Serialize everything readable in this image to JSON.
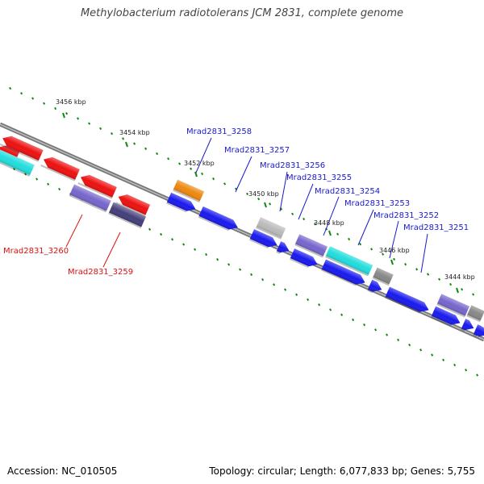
{
  "title": "Methylobacterium radiotolerans JCM 2831, complete genome",
  "footer": {
    "accession": "Accession: NC_010505",
    "summary": "Topology: circular; Length: 6,077,833 bp; Genes: 5,755"
  },
  "colors": {
    "forward_gene": "#1a1aee",
    "reverse_gene": "#ee1111",
    "cyan_gene": "#22dddd",
    "orange_gene": "#ee8811",
    "purple_gene": "#7766cc",
    "dark_purple_gene": "#443f7a",
    "grey_gene": "#888888",
    "light_grey_gene": "#bbbbbb",
    "backbone": "#777777",
    "tick": "#118811"
  },
  "kbp_labels": [
    "3456 kbp",
    "3454 kbp",
    "3452 kbp",
    "3450 kbp",
    "3448 kbp",
    "3446 kbp",
    "3444 kbp"
  ],
  "gene_labels": [
    {
      "text": "Mrad2831_3258",
      "strand": "forward"
    },
    {
      "text": "Mrad2831_3257",
      "strand": "forward"
    },
    {
      "text": "Mrad2831_3256",
      "strand": "forward"
    },
    {
      "text": "Mrad2831_3255",
      "strand": "forward"
    },
    {
      "text": "Mrad2831_3254",
      "strand": "forward"
    },
    {
      "text": "Mrad2831_3253",
      "strand": "forward"
    },
    {
      "text": "Mrad2831_3252",
      "strand": "forward"
    },
    {
      "text": "Mrad2831_3251",
      "strand": "forward"
    },
    {
      "text": "Mrad2831_3260",
      "strand": "reverse"
    },
    {
      "text": "Mrad2831_3259",
      "strand": "reverse"
    }
  ],
  "genes": [
    {
      "color": "reverse_gene",
      "dir": "left"
    },
    {
      "color": "reverse_gene",
      "dir": "left"
    },
    {
      "color": "reverse_gene",
      "dir": "left"
    },
    {
      "color": "reverse_gene",
      "dir": "left"
    },
    {
      "color": "reverse_gene",
      "dir": "left"
    },
    {
      "color": "cyan_gene",
      "dir": "none"
    },
    {
      "color": "purple_gene",
      "dir": "none"
    },
    {
      "color": "dark_purple_gene",
      "dir": "none"
    },
    {
      "color": "orange_gene",
      "dir": "none"
    },
    {
      "color": "forward_gene",
      "dir": "right"
    },
    {
      "color": "forward_gene",
      "dir": "right"
    },
    {
      "color": "light_grey_gene",
      "dir": "none"
    },
    {
      "color": "forward_gene",
      "dir": "right"
    },
    {
      "color": "forward_gene",
      "dir": "right"
    },
    {
      "color": "purple_gene",
      "dir": "none"
    },
    {
      "color": "forward_gene",
      "dir": "right"
    },
    {
      "color": "forward_gene",
      "dir": "right"
    },
    {
      "color": "cyan_gene",
      "dir": "none"
    },
    {
      "color": "forward_gene",
      "dir": "right"
    },
    {
      "color": "grey_gene",
      "dir": "none"
    },
    {
      "color": "forward_gene",
      "dir": "right"
    },
    {
      "color": "forward_gene",
      "dir": "right"
    },
    {
      "color": "purple_gene",
      "dir": "none"
    },
    {
      "color": "forward_gene",
      "dir": "right"
    },
    {
      "color": "forward_gene",
      "dir": "right"
    },
    {
      "color": "grey_gene",
      "dir": "none"
    },
    {
      "color": "forward_gene",
      "dir": "right"
    }
  ]
}
